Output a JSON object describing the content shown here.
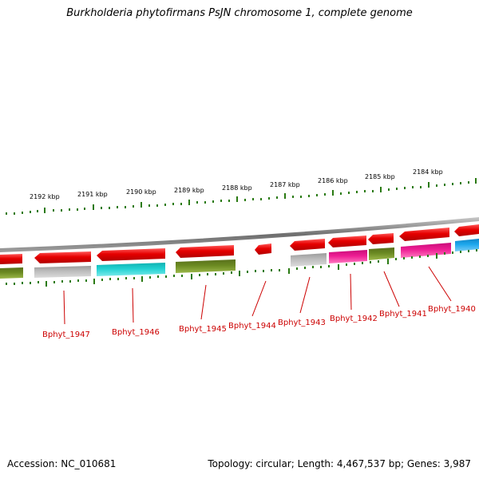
{
  "title": "Burkholderia phytofirmans PsJN chromosome 1, complete genome",
  "kbp_labels": [
    "2192 kbp",
    "2191 kbp",
    "2190 kbp",
    "2189 kbp",
    "2188 kbp",
    "2187 kbp",
    "2186 kbp",
    "2185 kbp",
    "2184 kbp"
  ],
  "gene_labels": [
    "Bphyt_1947",
    "Bphyt_1946",
    "Bphyt_1945",
    "Bphyt_1944",
    "Bphyt_1943",
    "Bphyt_1942",
    "Bphyt_1941",
    "Bphyt_1940"
  ],
  "footer": {
    "accession": "Accession: NC_010681",
    "summary": "Topology: circular; Length: 4,467,537 bp; Genes: 3,987"
  },
  "colors": {
    "backbone": "#8c8c8c",
    "tick": "#2a7a12",
    "gene_strand": "#ee0000",
    "label": "#cc0000",
    "categories": [
      "#8f8f8f",
      "#20c7c7",
      "#6b8e23",
      "#ee1e8c",
      "#1ea0e6"
    ]
  }
}
